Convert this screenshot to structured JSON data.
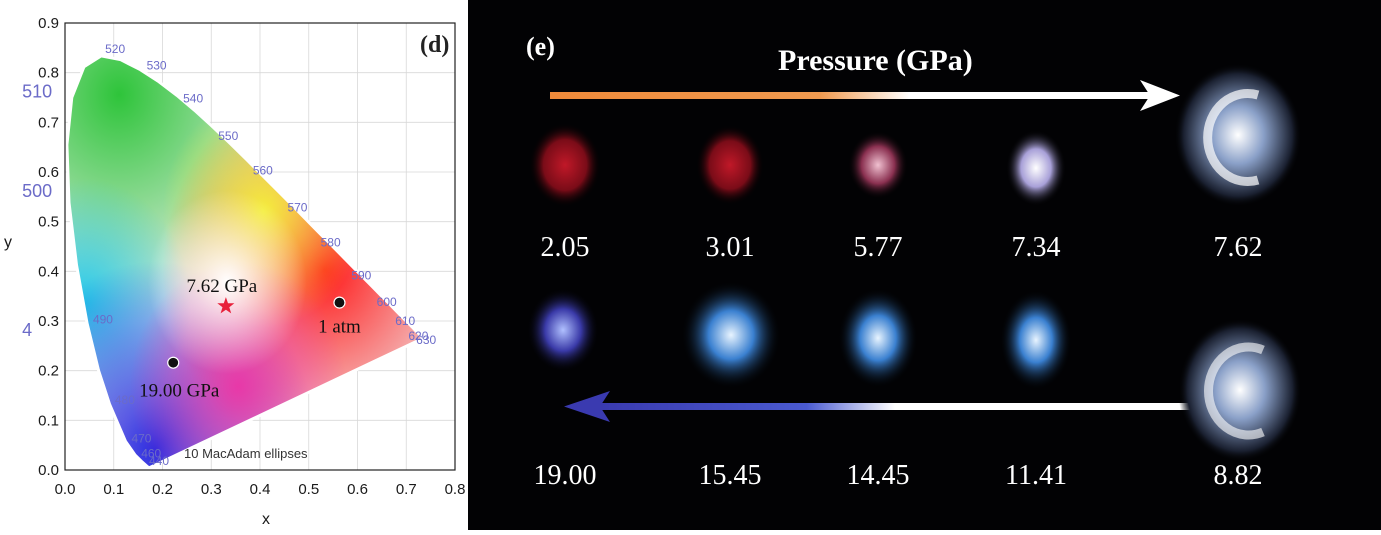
{
  "panel_d": {
    "letter": "(d)",
    "xlabel": "x",
    "ylabel": "y",
    "x_ticks": [
      "0.0",
      "0.1",
      "0.2",
      "0.3",
      "0.4",
      "0.5",
      "0.6",
      "0.7",
      "0.8"
    ],
    "y_ticks": [
      "0.0",
      "0.1",
      "0.2",
      "0.3",
      "0.4",
      "0.5",
      "0.6",
      "0.7",
      "0.8",
      "0.9"
    ],
    "wavelength_labels": [
      {
        "text": "520",
        "x": 0.07,
        "y": 0.84
      },
      {
        "text": "530",
        "x": 0.155,
        "y": 0.806
      },
      {
        "text": "540",
        "x": 0.23,
        "y": 0.74
      },
      {
        "text": "550",
        "x": 0.302,
        "y": 0.664
      },
      {
        "text": "560",
        "x": 0.373,
        "y": 0.595
      },
      {
        "text": "570",
        "x": 0.444,
        "y": 0.52
      },
      {
        "text": "580",
        "x": 0.512,
        "y": 0.45
      },
      {
        "text": "590",
        "x": 0.575,
        "y": 0.384
      },
      {
        "text": "600",
        "x": 0.627,
        "y": 0.33
      },
      {
        "text": "610",
        "x": 0.665,
        "y": 0.292
      },
      {
        "text": "620",
        "x": 0.692,
        "y": 0.262
      },
      {
        "text": "630",
        "x": 0.708,
        "y": 0.254
      },
      {
        "text": "490",
        "x": 0.045,
        "y": 0.295
      },
      {
        "text": "480",
        "x": 0.09,
        "y": 0.133
      },
      {
        "text": "470",
        "x": 0.124,
        "y": 0.055
      },
      {
        "text": "460",
        "x": 0.144,
        "y": 0.025
      },
      {
        "text": "440",
        "x": 0.16,
        "y": 0.01
      }
    ],
    "big_labels": [
      {
        "text": "510",
        "x": -0.01,
        "y": 0.75
      },
      {
        "text": "500",
        "x": -0.01,
        "y": 0.55
      },
      {
        "text": "4",
        "x": -0.01,
        "y": 0.27
      }
    ],
    "footnote": "10  MacAdam ellipses",
    "points": [
      {
        "label": "7.62 GPa",
        "x": 0.33,
        "y": 0.33,
        "marker": "star",
        "color": "#e8203a"
      },
      {
        "label": "1 atm",
        "x": 0.563,
        "y": 0.337,
        "marker": "dot",
        "color": "#111111"
      },
      {
        "label": "19.00 GPa",
        "x": 0.222,
        "y": 0.216,
        "marker": "dot",
        "color": "#111111"
      }
    ]
  },
  "panel_e": {
    "letter": "(e)",
    "title": "Pressure (GPa)",
    "top_row": [
      "2.05",
      "3.01",
      "5.77",
      "7.34",
      "7.62"
    ],
    "bottom_row": [
      "19.00",
      "15.45",
      "14.45",
      "11.41",
      "8.82"
    ]
  }
}
